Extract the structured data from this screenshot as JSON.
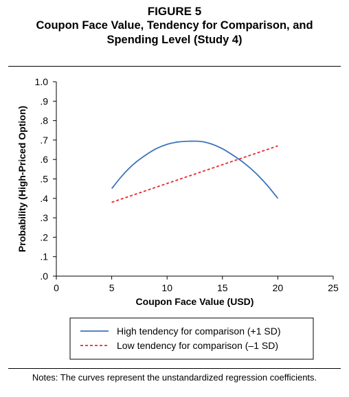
{
  "figure": {
    "label": "FIGURE 5",
    "title_line1": "Coupon Face Value, Tendency for Comparison, and",
    "title_line2": "Spending Level (Study 4)"
  },
  "notes": "Notes: The curves represent the unstandardized regression coefficients.",
  "colors": {
    "high": "#3b73b9",
    "low": "#e8272a"
  },
  "chart_data": {
    "type": "line",
    "title": "",
    "xlabel": "Coupon Face Value (USD)",
    "ylabel": "Probability (High-Priced Option)",
    "xlim": [
      0,
      25
    ],
    "ylim": [
      0,
      1.0
    ],
    "x_ticks": [
      0,
      5,
      10,
      15,
      20,
      25
    ],
    "x_tick_labels": [
      "0",
      "5",
      "10",
      "15",
      "20",
      "25"
    ],
    "y_ticks": [
      0,
      0.1,
      0.2,
      0.3,
      0.4,
      0.5,
      0.6,
      0.7,
      0.8,
      0.9,
      1.0
    ],
    "y_tick_labels": [
      ".0",
      ".1",
      ".2",
      ".3",
      ".4",
      ".5",
      ".6",
      ".7",
      ".8",
      ".9",
      "1.0"
    ],
    "grid": false,
    "legend_position": "bottom",
    "series": [
      {
        "name": "High tendency for comparison (+1 SD)",
        "style": "solid",
        "x": [
          5,
          6,
          7,
          8,
          9,
          10,
          11,
          12,
          13,
          14,
          15,
          16,
          17,
          18,
          19,
          20
        ],
        "y": [
          0.45,
          0.52,
          0.577,
          0.62,
          0.655,
          0.678,
          0.69,
          0.694,
          0.693,
          0.68,
          0.655,
          0.62,
          0.58,
          0.53,
          0.47,
          0.4
        ]
      },
      {
        "name": "Low tendency for comparison (–1 SD)",
        "style": "dashed",
        "x": [
          5,
          20
        ],
        "y": [
          0.38,
          0.67
        ]
      }
    ]
  }
}
